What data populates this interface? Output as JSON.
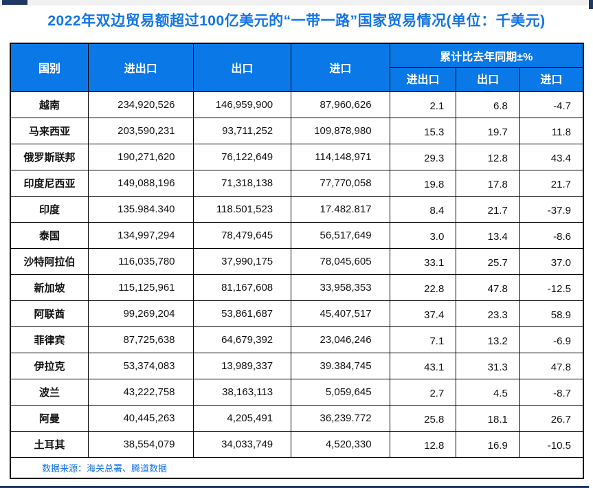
{
  "title": "2022年双边贸易额超过100亿美元的“一带一路”国家贸易情况(单位：千美元)",
  "source_note": "数据来源：海关总署、腾道数据",
  "colors": {
    "accent_blue": "#1374e8",
    "header_bg": "#0a78e6",
    "header_text": "#ffffff",
    "border": "#000000",
    "navy_bar": "#1f3864",
    "top_strip": "#f1f1f1"
  },
  "columns": {
    "country": "国别",
    "total": "进出口",
    "export": "出口",
    "import": "进口",
    "yoy_group": "累计比去年同期±%",
    "yoy_total": "进出口",
    "yoy_export": "出口",
    "yoy_import": "进口"
  },
  "table": {
    "rows": [
      {
        "country": "越南",
        "total": "234,920,526",
        "export": "146,959,900",
        "import": "87,960,626",
        "yoy_total": "2.1",
        "yoy_export": "6.8",
        "yoy_import": "-4.7"
      },
      {
        "country": "马来西亚",
        "total": "203,590,231",
        "export": "93,711,252",
        "import": "109,878,980",
        "yoy_total": "15.3",
        "yoy_export": "19.7",
        "yoy_import": "11.8"
      },
      {
        "country": "俄罗斯联邦",
        "total": "190,271,620",
        "export": "76,122,649",
        "import": "114,148,971",
        "yoy_total": "29.3",
        "yoy_export": "12.8",
        "yoy_import": "43.4"
      },
      {
        "country": "印度尼西亚",
        "total": "149,088,196",
        "export": "71,318,138",
        "import": "77,770,058",
        "yoy_total": "19.8",
        "yoy_export": "17.8",
        "yoy_import": "21.7"
      },
      {
        "country": "印度",
        "total": "135.984.340",
        "export": "118.501,523",
        "import": "17.482.817",
        "yoy_total": "8.4",
        "yoy_export": "21.7",
        "yoy_import": "-37.9"
      },
      {
        "country": "泰国",
        "total": "134,997,294",
        "export": "78,479,645",
        "import": "56,517,649",
        "yoy_total": "3.0",
        "yoy_export": "13.4",
        "yoy_import": "-8.6"
      },
      {
        "country": "沙特阿拉伯",
        "total": "116,035,780",
        "export": "37,990,175",
        "import": "78,045,605",
        "yoy_total": "33.1",
        "yoy_export": "25.7",
        "yoy_import": "37.0"
      },
      {
        "country": "新加坡",
        "total": "115,125,961",
        "export": "81,167,608",
        "import": "33,958,353",
        "yoy_total": "22.8",
        "yoy_export": "47.8",
        "yoy_import": "-12.5"
      },
      {
        "country": "阿联酋",
        "total": "99,269,204",
        "export": "53,861,687",
        "import": "45,407,517",
        "yoy_total": "37.4",
        "yoy_export": "23.3",
        "yoy_import": "58.9"
      },
      {
        "country": "菲律宾",
        "total": "87,725,638",
        "export": "64,679,392",
        "import": "23,046,246",
        "yoy_total": "7.1",
        "yoy_export": "13.2",
        "yoy_import": "-6.9"
      },
      {
        "country": "伊拉克",
        "total": "53,374,083",
        "export": "13,989,337",
        "import": "39.384,745",
        "yoy_total": "43.1",
        "yoy_export": "31.3",
        "yoy_import": "47.8"
      },
      {
        "country": "波兰",
        "total": "43,222,758",
        "export": "38,163,113",
        "import": "5,059,645",
        "yoy_total": "2.7",
        "yoy_export": "4.5",
        "yoy_import": "-8.7"
      },
      {
        "country": "阿曼",
        "total": "40,445,263",
        "export": "4,205,491",
        "import": "36,239.772",
        "yoy_total": "25.8",
        "yoy_export": "18.1",
        "yoy_import": "26.7"
      },
      {
        "country": "土耳其",
        "total": "38,554,079",
        "export": "34,033,749",
        "import": "4,520,330",
        "yoy_total": "12.8",
        "yoy_export": "16.9",
        "yoy_import": "-10.5"
      }
    ]
  },
  "chart_data": {
    "type": "table",
    "title": "2022年双边贸易额超过100亿美元的“一带一路”国家贸易情况(单位：千美元)",
    "columns": [
      "国别",
      "进出口",
      "出口",
      "进口",
      "累计比去年同期±% 进出口",
      "累计比去年同期±% 出口",
      "累计比去年同期±% 进口"
    ],
    "rows": [
      [
        "越南",
        "234,920,526",
        "146,959,900",
        "87,960,626",
        2.1,
        6.8,
        -4.7
      ],
      [
        "马来西亚",
        "203,590,231",
        "93,711,252",
        "109,878,980",
        15.3,
        19.7,
        11.8
      ],
      [
        "俄罗斯联邦",
        "190,271,620",
        "76,122,649",
        "114,148,971",
        29.3,
        12.8,
        43.4
      ],
      [
        "印度尼西亚",
        "149,088,196",
        "71,318,138",
        "77,770,058",
        19.8,
        17.8,
        21.7
      ],
      [
        "印度",
        "135.984.340",
        "118.501,523",
        "17.482.817",
        8.4,
        21.7,
        -37.9
      ],
      [
        "泰国",
        "134,997,294",
        "78,479,645",
        "56,517,649",
        3.0,
        13.4,
        -8.6
      ],
      [
        "沙特阿拉伯",
        "116,035,780",
        "37,990,175",
        "78,045,605",
        33.1,
        25.7,
        37.0
      ],
      [
        "新加坡",
        "115,125,961",
        "81,167,608",
        "33,958,353",
        22.8,
        47.8,
        -12.5
      ],
      [
        "阿联酋",
        "99,269,204",
        "53,861,687",
        "45,407,517",
        37.4,
        23.3,
        58.9
      ],
      [
        "菲律宾",
        "87,725,638",
        "64,679,392",
        "23,046,246",
        7.1,
        13.2,
        -6.9
      ],
      [
        "伊拉克",
        "53,374,083",
        "13,989,337",
        "39.384,745",
        43.1,
        31.3,
        47.8
      ],
      [
        "波兰",
        "43,222,758",
        "38,163,113",
        "5,059,645",
        2.7,
        4.5,
        -8.7
      ],
      [
        "阿曼",
        "40,445,263",
        "4,205,491",
        "36,239.772",
        25.8,
        18.1,
        26.7
      ],
      [
        "土耳其",
        "38,554,079",
        "34,033,749",
        "4,520,330",
        12.8,
        16.9,
        -10.5
      ]
    ],
    "footnote": "数据来源：海关总署、腾道数据"
  }
}
